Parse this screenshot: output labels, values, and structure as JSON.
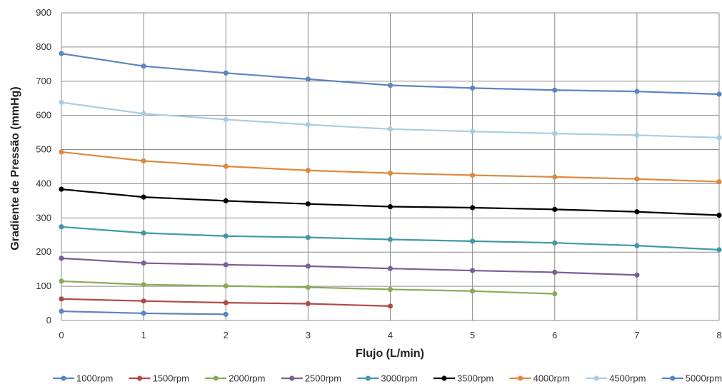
{
  "chart_data": {
    "type": "line",
    "title": "",
    "xlabel": "Flujo (L/min)",
    "ylabel": "Gradiente de Pressão (mmHg)",
    "xlim": [
      0,
      8
    ],
    "ylim": [
      0,
      900
    ],
    "x_ticks": [
      0,
      1,
      2,
      3,
      4,
      5,
      6,
      7,
      8
    ],
    "y_ticks": [
      0,
      100,
      200,
      300,
      400,
      500,
      600,
      700,
      800,
      900
    ],
    "grid": true,
    "legend_position": "bottom",
    "series": [
      {
        "name": "1000rpm",
        "color": "#5b86c0",
        "x": [
          0,
          1,
          2
        ],
        "y": [
          27,
          21,
          18
        ]
      },
      {
        "name": "1500rpm",
        "color": "#b04a45",
        "x": [
          0,
          1,
          2,
          3,
          4
        ],
        "y": [
          63,
          57,
          52,
          49,
          42
        ]
      },
      {
        "name": "2000rpm",
        "color": "#8aaa55",
        "x": [
          0,
          1,
          2,
          3,
          4,
          5,
          6
        ],
        "y": [
          115,
          105,
          101,
          97,
          91,
          86,
          78
        ]
      },
      {
        "name": "2500rpm",
        "color": "#7a5e94",
        "x": [
          0,
          1,
          2,
          3,
          4,
          5,
          6,
          7
        ],
        "y": [
          182,
          168,
          163,
          159,
          152,
          146,
          141,
          133
        ]
      },
      {
        "name": "3000rpm",
        "color": "#3f9aa6",
        "x": [
          0,
          1,
          2,
          3,
          4,
          5,
          6,
          7,
          8
        ],
        "y": [
          274,
          256,
          247,
          243,
          237,
          232,
          227,
          219,
          207
        ]
      },
      {
        "name": "3500rpm",
        "color": "#000000",
        "x": [
          0,
          1,
          2,
          3,
          4,
          5,
          6,
          7,
          8
        ],
        "y": [
          384,
          361,
          350,
          341,
          333,
          330,
          325,
          318,
          308
        ]
      },
      {
        "name": "4000rpm",
        "color": "#dd8a3e",
        "x": [
          0,
          1,
          2,
          3,
          4,
          5,
          6,
          7,
          8
        ],
        "y": [
          493,
          467,
          451,
          439,
          431,
          425,
          420,
          414,
          406
        ]
      },
      {
        "name": "4500rpm",
        "color": "#a9cde0",
        "x": [
          0,
          1,
          2,
          3,
          4,
          5,
          6,
          7,
          8
        ],
        "y": [
          638,
          605,
          588,
          573,
          560,
          553,
          547,
          542,
          535
        ]
      },
      {
        "name": "5000rpm",
        "color": "#5b86c0",
        "x": [
          0,
          1,
          2,
          3,
          4,
          5,
          6,
          7,
          8
        ],
        "y": [
          781,
          744,
          724,
          706,
          688,
          680,
          674,
          670,
          662
        ]
      }
    ]
  }
}
